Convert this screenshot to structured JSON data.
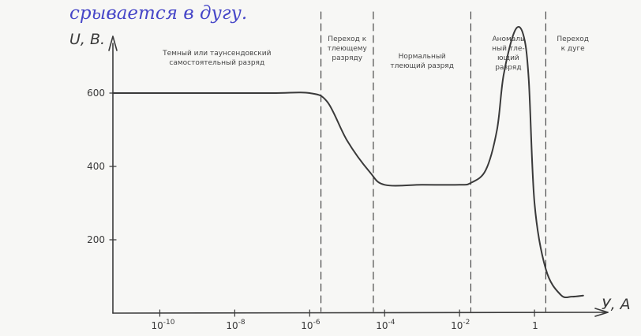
{
  "header_text": "срывается в дугу.",
  "chart_data": {
    "type": "line",
    "title": "",
    "ylabel": "U, B.",
    "xlabel": "У, А",
    "xscale": "log",
    "x_ticks": [
      {
        "label": "10",
        "exp": "-10",
        "value": 1e-10
      },
      {
        "label": "10",
        "exp": "-8",
        "value": 1e-08
      },
      {
        "label": "10",
        "exp": "-6",
        "value": 1e-06
      },
      {
        "label": "10",
        "exp": "-4",
        "value": 0.0001
      },
      {
        "label": "10",
        "exp": "-2",
        "value": 0.01
      },
      {
        "label": "1",
        "exp": "",
        "value": 1
      }
    ],
    "y_ticks": [
      {
        "label": "600",
        "value": 600
      },
      {
        "label": "400",
        "value": 400
      },
      {
        "label": "200",
        "value": 200
      }
    ],
    "ylim": [
      0,
      800
    ],
    "xlim": [
      1e-11,
      100
    ],
    "grid": false,
    "series": [
      {
        "x": [
          1e-11,
          1e-09,
          1e-07,
          1e-06,
          3e-06,
          1e-05,
          4e-05,
          0.0001,
          0.001,
          0.01,
          0.02,
          0.05,
          0.1,
          0.15,
          0.3,
          0.5,
          0.7,
          1,
          2,
          5,
          10,
          20
        ],
        "y": [
          600,
          600,
          600,
          600,
          575,
          470,
          385,
          350,
          350,
          350,
          355,
          390,
          500,
          650,
          770,
          760,
          640,
          300,
          120,
          50,
          45,
          48
        ]
      }
    ],
    "dividers": [
      2e-06,
      5e-05,
      0.02,
      2
    ],
    "regions": [
      {
        "lines": [
          "Темный или таунсендовский",
          "самостоятельный разряд"
        ]
      },
      {
        "lines": [
          "Переход к",
          "тлеющему",
          "разряду"
        ]
      },
      {
        "lines": [
          "Нормальный",
          "тлеющий разряд"
        ]
      },
      {
        "lines": [
          "Аномаль",
          "ный тле-",
          "ющий",
          "разряд"
        ]
      },
      {
        "lines": [
          "Переход",
          "к дуге"
        ]
      }
    ]
  }
}
